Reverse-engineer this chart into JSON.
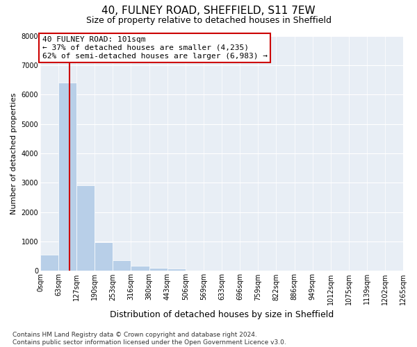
{
  "title": "40, FULNEY ROAD, SHEFFIELD, S11 7EW",
  "subtitle": "Size of property relative to detached houses in Sheffield",
  "xlabel": "Distribution of detached houses by size in Sheffield",
  "ylabel": "Number of detached properties",
  "bar_edges": [
    0,
    63,
    127,
    190,
    253,
    316,
    380,
    443,
    506,
    569,
    633,
    696,
    759,
    822,
    886,
    949,
    1012,
    1075,
    1139,
    1202,
    1265
  ],
  "bar_heights": [
    550,
    6400,
    2920,
    975,
    375,
    175,
    100,
    75,
    0,
    0,
    0,
    0,
    0,
    0,
    0,
    0,
    0,
    0,
    0,
    0
  ],
  "bar_color": "#b8cfe8",
  "property_line_x": 101,
  "property_line_color": "#cc0000",
  "annotation_line1": "40 FULNEY ROAD: 101sqm",
  "annotation_line2": "← 37% of detached houses are smaller (4,235)",
  "annotation_line3": "62% of semi-detached houses are larger (6,983) →",
  "annotation_box_facecolor": "#ffffff",
  "annotation_box_edgecolor": "#cc0000",
  "ylim": [
    0,
    8000
  ],
  "xlim": [
    0,
    1265
  ],
  "tick_labels": [
    "0sqm",
    "63sqm",
    "127sqm",
    "190sqm",
    "253sqm",
    "316sqm",
    "380sqm",
    "443sqm",
    "506sqm",
    "569sqm",
    "633sqm",
    "696sqm",
    "759sqm",
    "822sqm",
    "886sqm",
    "949sqm",
    "1012sqm",
    "1075sqm",
    "1139sqm",
    "1202sqm",
    "1265sqm"
  ],
  "ytick_labels": [
    "0",
    "1000",
    "2000",
    "3000",
    "4000",
    "5000",
    "6000",
    "7000",
    "8000"
  ],
  "ytick_values": [
    0,
    1000,
    2000,
    3000,
    4000,
    5000,
    6000,
    7000,
    8000
  ],
  "footnote": "Contains HM Land Registry data © Crown copyright and database right 2024.\nContains public sector information licensed under the Open Government Licence v3.0.",
  "fig_facecolor": "#ffffff",
  "plot_facecolor": "#e8eef5",
  "grid_color": "#ffffff",
  "title_fontsize": 11,
  "subtitle_fontsize": 9,
  "ylabel_fontsize": 8,
  "xlabel_fontsize": 9,
  "tick_fontsize": 7,
  "annotation_fontsize": 8,
  "footnote_fontsize": 6.5
}
